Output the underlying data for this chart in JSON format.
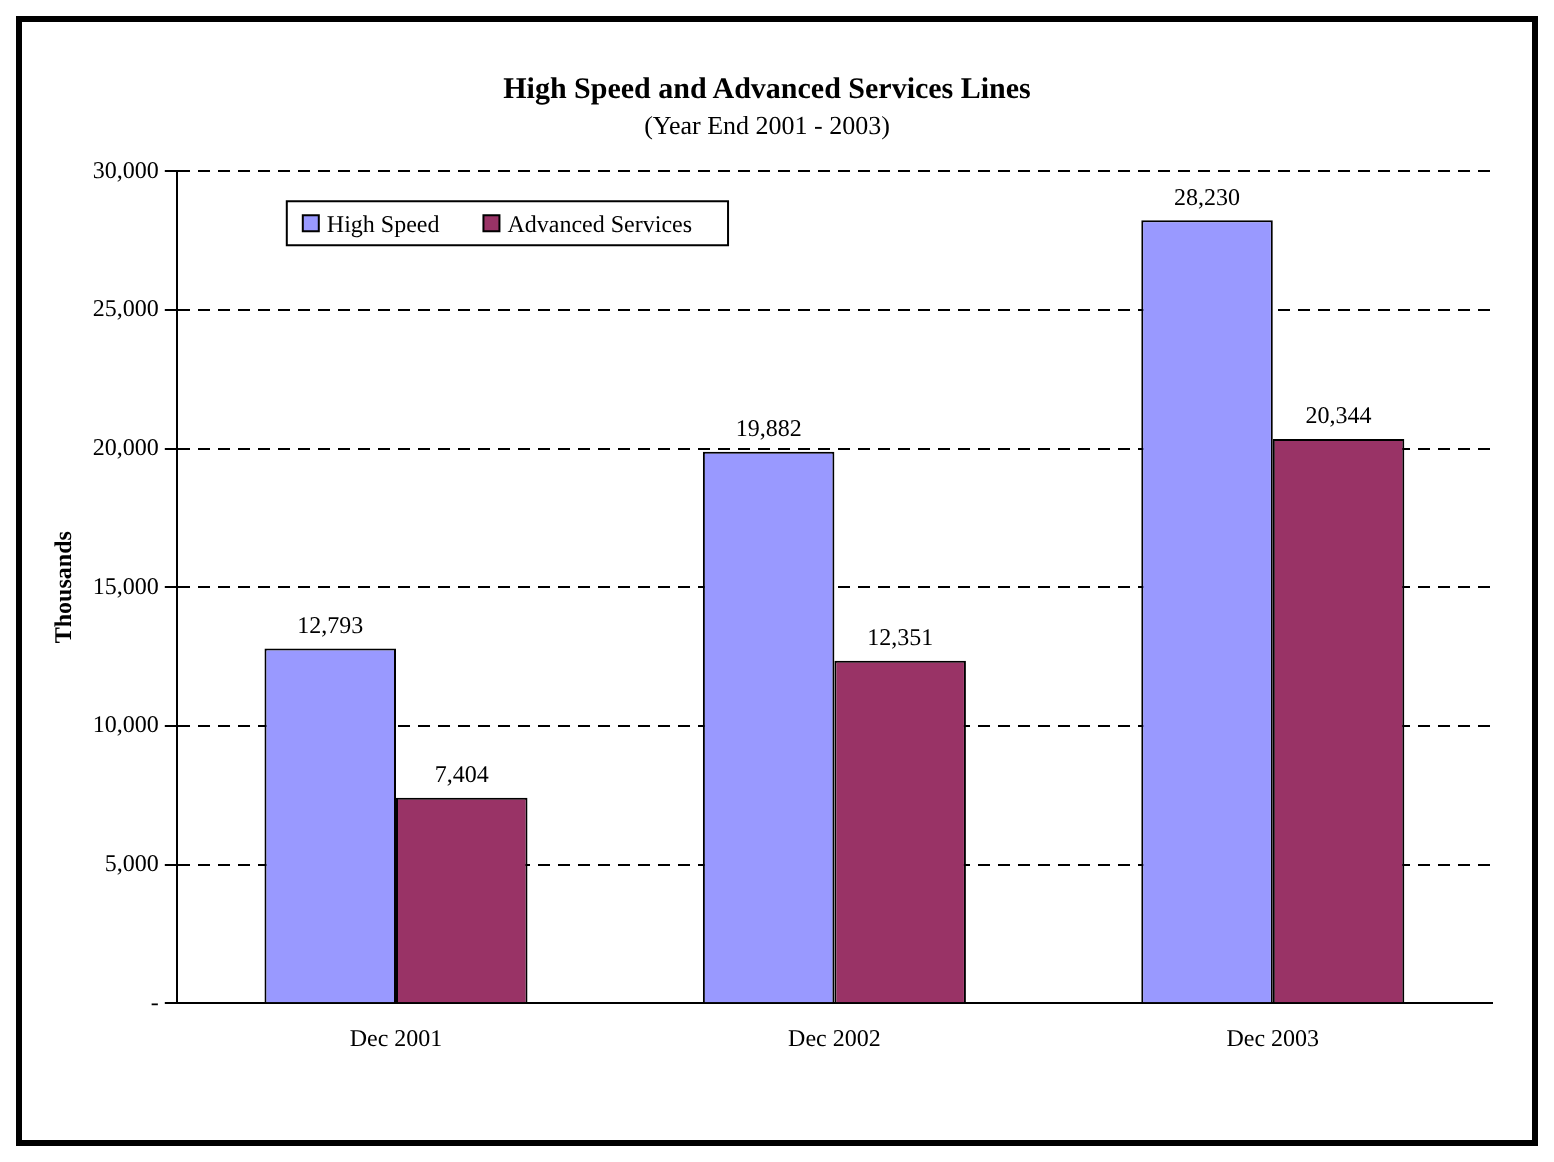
{
  "chart_data": {
    "type": "bar",
    "title": "High Speed and Advanced Services Lines",
    "subtitle": "(Year End 2001 - 2003)",
    "ylabel": "Thousands",
    "categories": [
      "Dec 2001",
      "Dec 2002",
      "Dec 2003"
    ],
    "series": [
      {
        "name": "High Speed",
        "color": "#9999ff",
        "values": [
          12793,
          19882,
          28230
        ],
        "value_labels": [
          "12,793",
          "19,882",
          "28,230"
        ]
      },
      {
        "name": "Advanced Services",
        "color": "#993366",
        "values": [
          7404,
          12351,
          20344
        ],
        "value_labels": [
          "7,404",
          "12,351",
          "20,344"
        ]
      }
    ],
    "ylim": [
      0,
      30000
    ],
    "yticks": [
      {
        "value": 0,
        "label": "-"
      },
      {
        "value": 5000,
        "label": "5,000"
      },
      {
        "value": 10000,
        "label": "10,000"
      },
      {
        "value": 15000,
        "label": "15,000"
      },
      {
        "value": 20000,
        "label": "20,000"
      },
      {
        "value": 25000,
        "label": "25,000"
      },
      {
        "value": 30000,
        "label": "30,000"
      }
    ],
    "grid": "y",
    "legend": "top left"
  }
}
